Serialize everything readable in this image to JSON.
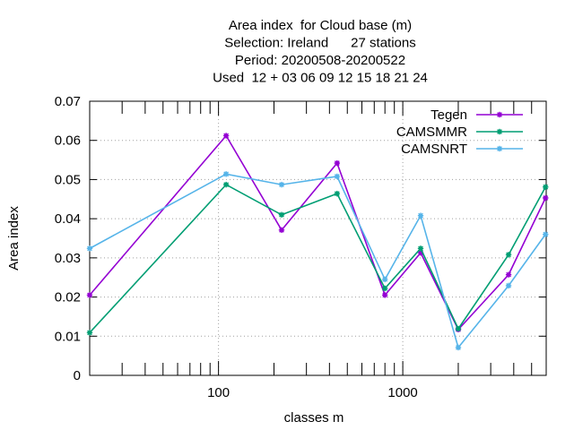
{
  "chart_data": {
    "type": "line",
    "title_lines": [
      "Area index  for Cloud base (m)",
      "Selection: Ireland      27 stations",
      "Period: 20200508-20200522",
      "Used  12 + 03 06 09 12 15 18 21 24"
    ],
    "xlabel": "classes m",
    "ylabel": "Area index",
    "x_scale": "log",
    "xlim": [
      20,
      6000
    ],
    "ylim": [
      0,
      0.07
    ],
    "x_ticks": [
      100,
      1000
    ],
    "x_tick_labels": [
      "100",
      "1000"
    ],
    "y_ticks": [
      0,
      0.01,
      0.02,
      0.03,
      0.04,
      0.05,
      0.06,
      0.07
    ],
    "y_tick_labels": [
      "0",
      "0.01",
      "0.02",
      "0.03",
      "0.04",
      "0.05",
      "0.06",
      "0.07"
    ],
    "grid": true,
    "legend_position": "top-right",
    "x": [
      20,
      110,
      220,
      440,
      800,
      1250,
      2000,
      3750,
      5950
    ],
    "series": [
      {
        "name": "Tegen",
        "color": "#9400d3",
        "values": [
          0.0205,
          0.0612,
          0.0371,
          0.0542,
          0.0205,
          0.0313,
          0.0117,
          0.0257,
          0.0453
        ]
      },
      {
        "name": "CAMSMMR",
        "color": "#009e73",
        "values": [
          0.0109,
          0.0487,
          0.041,
          0.0464,
          0.0222,
          0.0324,
          0.0119,
          0.0308,
          0.0481
        ]
      },
      {
        "name": "CAMSNRT",
        "color": "#56b4e9",
        "values": [
          0.0324,
          0.0514,
          0.0487,
          0.0508,
          0.0245,
          0.0408,
          0.0071,
          0.0229,
          0.036
        ]
      }
    ]
  }
}
